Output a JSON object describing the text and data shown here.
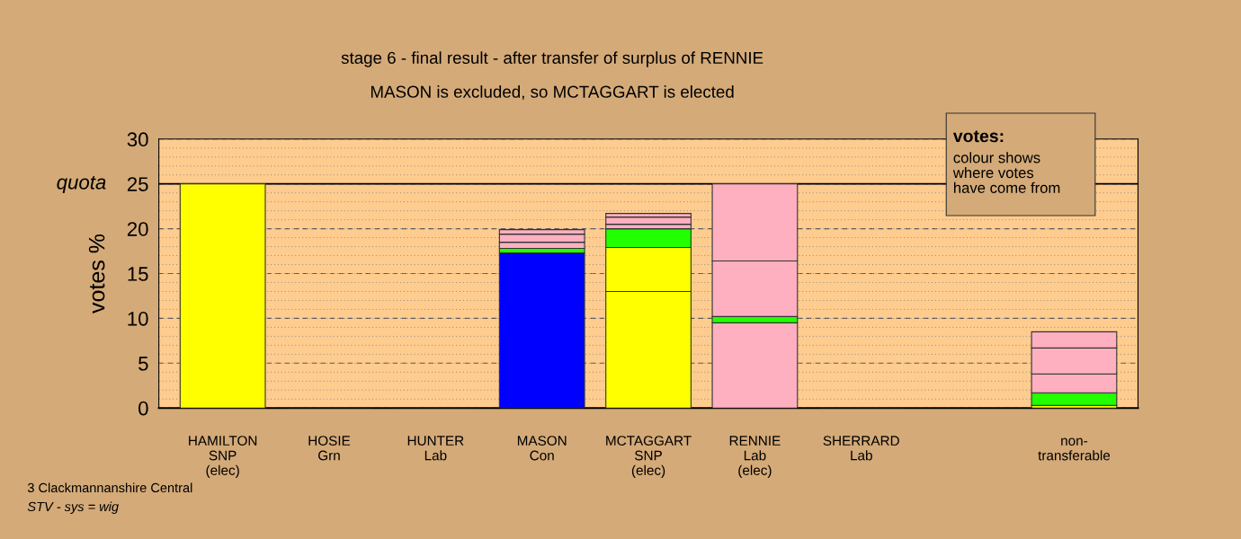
{
  "chart_data": {
    "type": "bar",
    "stacked": true,
    "title": "stage 6 - final result - after transfer of surplus of RENNIE",
    "subtitle": "MASON is excluded, so MCTAGGART is elected",
    "ylabel": "votes %",
    "categories": [
      "HAMILTON\nSNP\n(elec)",
      "HOSIE\nGrn",
      "HUNTER\nLab",
      "MASON\nCon",
      "MCTAGGART\nSNP\n(elec)",
      "RENNIE\nLab\n(elec)",
      "SHERRARD\nLab",
      null,
      "non-\ntransferable"
    ],
    "series": [
      {
        "values": [
          25,
          0,
          0,
          17.3,
          13.0,
          9.5,
          0,
          null,
          0.3
        ],
        "colors": [
          "#ffff00",
          "#333333",
          "#333333",
          "#0000ff",
          "#ffff00",
          "#ffb0c0",
          "#333333",
          "#ffff00",
          "#ffff00"
        ]
      },
      {
        "values": [
          null,
          null,
          null,
          0.5,
          4.9,
          0.7,
          null,
          null,
          1.4
        ],
        "colors": [
          "#22ff00",
          "#22ff00",
          "#22ff00",
          "#22ff00",
          "#ffff00",
          "#22ff00",
          "#22ff00",
          "#22ff00",
          "#22ff00"
        ]
      },
      {
        "values": [
          null,
          null,
          null,
          0.7,
          2.1,
          6.2,
          null,
          null,
          2.1
        ],
        "colors": [
          "#ffb0c0",
          "#ffb0c0",
          "#ffb0c0",
          "#ffb0c0",
          "#22ff00",
          "#ffb0c0",
          "#ffb0c0",
          "#ffb0c0",
          "#ffb0c0"
        ]
      },
      {
        "values": [
          null,
          null,
          null,
          0.9,
          0.5,
          8.6,
          null,
          null,
          2.9
        ],
        "colors": [
          "#ffb0c0",
          "#ffb0c0",
          "#ffb0c0",
          "#ffb0c0",
          "#ffb0c0",
          "#ffb0c0",
          "#ffb0c0",
          "#ffb0c0",
          "#ffb0c0"
        ]
      },
      {
        "values": [
          null,
          null,
          null,
          0.5,
          0.8,
          null,
          null,
          null,
          1.8
        ],
        "colors": [
          "#ffb0c0",
          "#ffb0c0",
          "#ffb0c0",
          "#ffb0c0",
          "#ffb0c0",
          "#ffb0c0",
          "#ffb0c0",
          "#ffb0c0",
          "#ffb0c0"
        ]
      },
      {
        "values": [
          null,
          null,
          null,
          null,
          0.4,
          null,
          null,
          null,
          null
        ],
        "colors": [
          "#ffb0c0",
          "#ffb0c0",
          "#ffb0c0",
          "#ffb0c0",
          "#ffb0c0",
          "#ffb0c0",
          "#ffb0c0",
          "#ffb0c0",
          "#ffb0c0"
        ]
      }
    ],
    "ylim": [
      0,
      30
    ],
    "yticks": [
      0,
      5,
      10,
      15,
      20,
      25,
      30
    ],
    "ref_lines": [
      {
        "axis": "y",
        "value": 25,
        "label": "quota",
        "color": "#000000",
        "line_style": "solid"
      }
    ],
    "grid": "y",
    "annotations": [
      "votes:",
      "colour shows\nwhere votes\nhave come from",
      "3 Clackmannanshire Central",
      "STV - sys = wig"
    ]
  }
}
